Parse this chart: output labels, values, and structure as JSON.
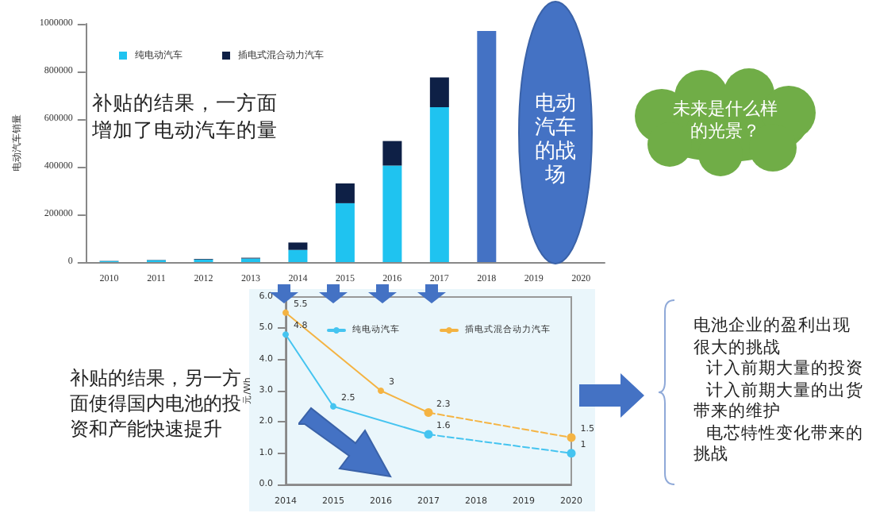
{
  "chart_data": [
    {
      "type": "bar",
      "stacked": true,
      "ylabel": "电动汽车销量",
      "legend": "top left",
      "grid": false,
      "categories": [
        "2010",
        "2011",
        "2012",
        "2013",
        "2014",
        "2015",
        "2016",
        "2017",
        "2018",
        "2019",
        "2020"
      ],
      "series": [
        {
          "name": "纯电动汽车",
          "color": "#1fc3f0",
          "values": [
            4000,
            8000,
            11000,
            15000,
            51000,
            247000,
            405000,
            650000,
            null,
            null,
            null
          ]
        },
        {
          "name": "插电式混合动力汽车",
          "color": "#0e2046",
          "values": [
            1000,
            1000,
            2000,
            3000,
            31000,
            83000,
            103000,
            125000,
            null,
            null,
            null
          ]
        },
        {
          "color": "#4472c4",
          "values": [
            null,
            null,
            null,
            null,
            null,
            null,
            null,
            null,
            970000,
            null,
            null
          ]
        }
      ],
      "ylim": [
        0,
        1000000
      ],
      "yticks": [
        0,
        200000,
        400000,
        600000,
        800000,
        1000000
      ],
      "annotations": [
        "补贴的结果，一方面增加了电动汽车的量",
        "电动汽车的战场",
        "未来是什么样的光景？"
      ]
    },
    {
      "type": "line",
      "ylabel": "元/Wh",
      "legend": "top right",
      "grid": false,
      "marker": "circle",
      "categories": [
        "2014",
        "2015",
        "2016",
        "2017",
        "2018",
        "2019",
        "2020"
      ],
      "series": [
        {
          "name": "纯电动汽车",
          "color": "#45c4f0",
          "line_style": "solid",
          "values": [
            4.8,
            2.5,
            null,
            1.6,
            null,
            null,
            null
          ],
          "value_labels": [
            "4.8",
            "2.5",
            null,
            "1.6",
            null,
            null,
            null
          ]
        },
        {
          "color": "#45c4f0",
          "line_style": "dashed",
          "values": [
            null,
            null,
            null,
            1.6,
            null,
            null,
            1
          ],
          "value_labels": [
            null,
            null,
            null,
            null,
            null,
            null,
            "1"
          ]
        },
        {
          "name": "插电式混合动力汽车",
          "color": "#f4b342",
          "line_style": "solid",
          "values": [
            5.5,
            null,
            3,
            2.3,
            null,
            null,
            null
          ],
          "value_labels": [
            "5.5",
            null,
            "3",
            "2.3",
            null,
            null,
            null
          ]
        },
        {
          "color": "#f5b443",
          "line_style": "dashed",
          "values": [
            null,
            null,
            null,
            2.3,
            null,
            null,
            1.5
          ],
          "value_labels": [
            null,
            null,
            null,
            null,
            null,
            null,
            "1.5"
          ]
        }
      ],
      "ylim": [
        0,
        6
      ],
      "yticks": [
        {
          "value": 0,
          "label": "0.0"
        },
        {
          "value": 1,
          "label": "1.0"
        },
        {
          "value": 2,
          "label": "2.0"
        },
        {
          "value": 3,
          "label": "3.0"
        },
        {
          "value": 4,
          "label": "4.0"
        },
        {
          "value": 5,
          "label": "5.0"
        },
        {
          "value": 6,
          "label": "6.0"
        }
      ],
      "annotations": [
        "补贴的结果，另一方面使得国内电池的投资和产能快速提升",
        "电池企业的盈利出现很大的挑战",
        "计入前期大量的投资",
        "计入前期大量的出货带来的维护",
        "电芯特性变化带来的挑战"
      ]
    }
  ]
}
